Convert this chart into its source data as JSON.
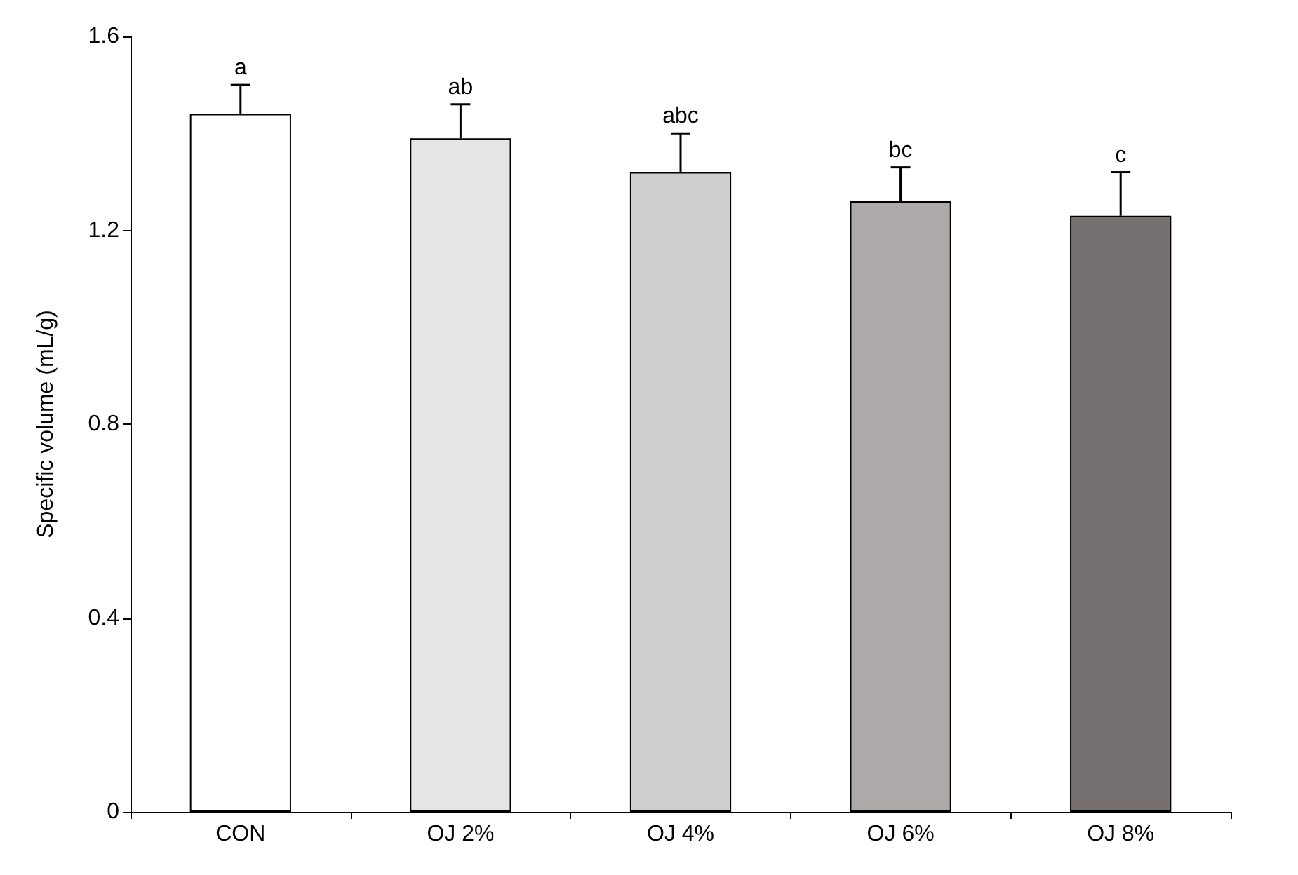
{
  "chart_data": {
    "type": "bar",
    "ylabel": "Specific volume (mL/g)",
    "categories": [
      "CON",
      "OJ 2%",
      "OJ 4%",
      "OJ 6%",
      "OJ 8%"
    ],
    "values": [
      1.44,
      1.39,
      1.32,
      1.26,
      1.23
    ],
    "colors": [
      "#ffffff",
      "#e6e5e6",
      "#d0cfcf",
      "#afaaaa",
      "#767070"
    ],
    "errors": [
      [
        1.44,
        1.5
      ],
      [
        1.39,
        1.46
      ],
      [
        1.32,
        1.4
      ],
      [
        1.26,
        1.33
      ],
      [
        1.23,
        1.32
      ]
    ],
    "ylim": [
      0,
      1.6
    ],
    "yticks": [
      0,
      0.4,
      0.8,
      1.2,
      1.6
    ],
    "grid": false,
    "annotations": [
      {
        "text": "a",
        "x": "CON",
        "y": 1.5
      },
      {
        "text": "ab",
        "x": "OJ 2%",
        "y": 1.46
      },
      {
        "text": "abc",
        "x": "OJ 4%",
        "y": 1.4
      },
      {
        "text": "bc",
        "x": "OJ 6%",
        "y": 1.33
      },
      {
        "text": "c",
        "x": "OJ 8%",
        "y": 1.32
      }
    ]
  }
}
